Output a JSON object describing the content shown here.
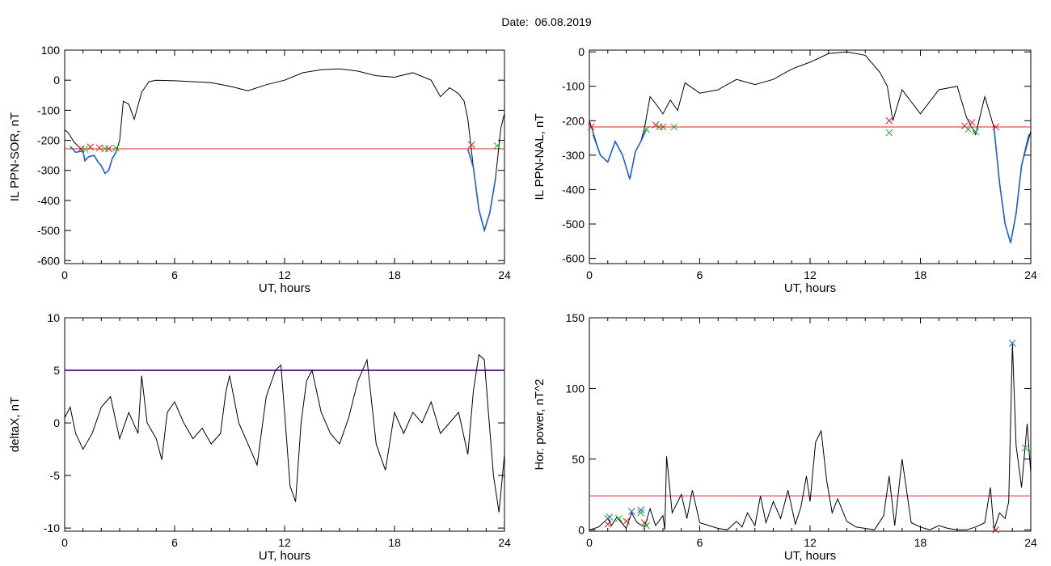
{
  "title": "Date:  06.08.2019",
  "chart_data": [
    {
      "type": "line",
      "title": "",
      "xlabel": "UT, hours",
      "ylabel": "IL PPN-SOR, nT",
      "xlim": [
        0,
        24
      ],
      "ylim": [
        -610,
        100
      ],
      "xticks": [
        "0",
        "6",
        "12",
        "18",
        "24"
      ],
      "yticks": [
        "100",
        "0",
        "-100",
        "-200",
        "-300",
        "-400",
        "-500",
        "-600"
      ],
      "threshold": -228,
      "series": [
        {
          "color": "#000000",
          "x": [
            0,
            0.2,
            0.5,
            1.0,
            1.1,
            1.3,
            1.6,
            1.8,
            2.0,
            2.2,
            2.4,
            2.6,
            2.8,
            3.0,
            3.2,
            3.5,
            3.8,
            4.2,
            4.6,
            5.0,
            6,
            7,
            8,
            9,
            10,
            11,
            12,
            13,
            14,
            15,
            16,
            17,
            18,
            19,
            20,
            20.5,
            21,
            21.5,
            21.8,
            22.0,
            22.3,
            22.6,
            22.9,
            23.2,
            23.5,
            23.8,
            24
          ],
          "y": [
            -165,
            -175,
            -205,
            -235,
            -268,
            -255,
            -250,
            -270,
            -285,
            -310,
            -300,
            -260,
            -240,
            -200,
            -70,
            -80,
            -130,
            -40,
            -5,
            0,
            -2,
            -5,
            -8,
            -20,
            -35,
            -15,
            0,
            25,
            35,
            38,
            30,
            15,
            10,
            25,
            0,
            -55,
            -25,
            -45,
            -70,
            -130,
            -290,
            -430,
            -500,
            -440,
            -330,
            -160,
            -110
          ]
        },
        {
          "color": "#1a5fd8",
          "x": [
            0.3,
            0.6,
            1.0,
            1.1,
            1.3,
            1.6,
            1.8,
            2.0,
            2.2,
            2.4,
            2.6,
            2.8
          ],
          "y": [
            -220,
            -240,
            -235,
            -268,
            -255,
            -250,
            -270,
            -285,
            -310,
            -300,
            -260,
            -240
          ]
        },
        {
          "color": "#1a5fd8",
          "x": [
            22.0,
            22.3,
            22.6,
            22.9,
            23.2,
            23.5
          ],
          "y": [
            -230,
            -290,
            -430,
            -500,
            -440,
            -330
          ]
        }
      ],
      "markers_red": [
        [
          0.9,
          -228
        ],
        [
          1.4,
          -222
        ],
        [
          1.9,
          -225
        ],
        [
          2.4,
          -228
        ],
        [
          22.2,
          -215
        ]
      ],
      "markers_green": [
        [
          1.1,
          -230
        ],
        [
          2.2,
          -228
        ],
        [
          2.8,
          -226
        ],
        [
          23.6,
          -218
        ]
      ]
    },
    {
      "type": "line",
      "title": "",
      "xlabel": "UT, hours",
      "ylabel": "IL PPN-NAL, nT",
      "xlim": [
        0,
        24
      ],
      "ylim": [
        -615,
        5
      ],
      "xticks": [
        "0",
        "6",
        "12",
        "18",
        "24"
      ],
      "yticks": [
        "0",
        "-100",
        "-200",
        "-300",
        "-400",
        "-500",
        "-600"
      ],
      "threshold": -218,
      "series": [
        {
          "color": "#000000",
          "x": [
            0,
            0.3,
            0.6,
            1.0,
            1.4,
            1.8,
            2.2,
            2.5,
            2.8,
            3.0,
            3.3,
            3.6,
            4.0,
            4.4,
            4.8,
            5.2,
            6,
            7,
            8,
            9,
            10,
            11,
            12,
            13,
            14,
            15,
            15.8,
            16.2,
            16.5,
            17,
            18,
            19,
            20,
            20.5,
            21,
            21.5,
            22.0,
            22.3,
            22.6,
            22.9,
            23.2,
            23.5,
            24
          ],
          "y": [
            -200,
            -250,
            -300,
            -320,
            -260,
            -300,
            -370,
            -290,
            -260,
            -220,
            -130,
            -150,
            -180,
            -140,
            -170,
            -90,
            -120,
            -110,
            -80,
            -95,
            -80,
            -50,
            -30,
            -5,
            0,
            -10,
            -60,
            -100,
            -200,
            -110,
            -180,
            -110,
            -100,
            -190,
            -240,
            -130,
            -220,
            -380,
            -500,
            -555,
            -470,
            -330,
            -230
          ]
        },
        {
          "color": "#1a5fd8",
          "x": [
            0.2,
            0.6,
            1.0,
            1.4,
            1.8,
            2.2,
            2.5,
            2.8,
            3.1
          ],
          "y": [
            -240,
            -300,
            -320,
            -260,
            -300,
            -370,
            -290,
            -260,
            -225
          ]
        },
        {
          "color": "#1a5fd8",
          "x": [
            22.0,
            22.3,
            22.6,
            22.9,
            23.2,
            23.5,
            23.9
          ],
          "y": [
            -220,
            -380,
            -500,
            -555,
            -470,
            -330,
            -240
          ]
        }
      ],
      "markers_red": [
        [
          0.1,
          -218
        ],
        [
          3.6,
          -212
        ],
        [
          4.0,
          -218
        ],
        [
          16.3,
          -200
        ],
        [
          20.4,
          -215
        ],
        [
          20.8,
          -205
        ],
        [
          22.1,
          -218
        ]
      ],
      "markers_green": [
        [
          3.1,
          -225
        ],
        [
          3.8,
          -218
        ],
        [
          4.6,
          -218
        ],
        [
          16.3,
          -235
        ],
        [
          20.6,
          -225
        ],
        [
          21.0,
          -232
        ]
      ]
    },
    {
      "type": "line",
      "title": "",
      "xlabel": "UT, hours",
      "ylabel": "deltaX, nT",
      "xlim": [
        0,
        24
      ],
      "ylim": [
        -10.3,
        10
      ],
      "xticks": [
        "0",
        "6",
        "12",
        "18",
        "24"
      ],
      "yticks": [
        "10",
        "5",
        "0",
        "-5",
        "-10"
      ],
      "threshold": 5,
      "series": [
        {
          "color": "#000000",
          "x": [
            0,
            0.3,
            0.6,
            1.0,
            1.5,
            2.0,
            2.5,
            3.0,
            3.5,
            4.0,
            4.2,
            4.5,
            5.0,
            5.3,
            5.6,
            6.0,
            6.5,
            7.0,
            7.5,
            8.0,
            8.5,
            8.8,
            9.0,
            9.5,
            10.0,
            10.5,
            11.0,
            11.5,
            11.8,
            12.0,
            12.3,
            12.6,
            12.9,
            13.2,
            13.5,
            14.0,
            14.5,
            15.0,
            15.5,
            16.0,
            16.5,
            17.0,
            17.5,
            18.0,
            18.5,
            19.0,
            19.5,
            20.0,
            20.5,
            21.0,
            21.5,
            22.0,
            22.3,
            22.6,
            22.9,
            23.1,
            23.4,
            23.7,
            24
          ],
          "y": [
            0.5,
            1.5,
            -1,
            -2.5,
            -1,
            1.5,
            2.5,
            -1.5,
            1,
            -1,
            4.5,
            0,
            -1.5,
            -3.5,
            1,
            2,
            0,
            -1.5,
            -0.5,
            -2,
            -1,
            3,
            4.5,
            0,
            -2,
            -4,
            2.5,
            5,
            5.5,
            1,
            -6,
            -7.5,
            0,
            4,
            5,
            1,
            -1,
            -2,
            0.5,
            4,
            6,
            -2,
            -4.5,
            1,
            -1,
            1,
            0,
            2,
            -1,
            0,
            1,
            -3,
            3,
            6.5,
            6,
            1.5,
            -5,
            -8.5,
            -3
          ]
        }
      ]
    },
    {
      "type": "line",
      "title": "",
      "xlabel": "UT, hours",
      "ylabel": "Hor. power, nT^2",
      "xlim": [
        0,
        24
      ],
      "ylim": [
        -1,
        150
      ],
      "xticks": [
        "0",
        "6",
        "12",
        "18",
        "24"
      ],
      "yticks": [
        "150",
        "100",
        "50",
        "0"
      ],
      "threshold": 24,
      "series": [
        {
          "color": "#000000",
          "x": [
            0,
            0.5,
            1.0,
            1.2,
            1.5,
            2.0,
            2.3,
            2.6,
            3.0,
            3.3,
            3.6,
            4.0,
            4.1,
            4.2,
            4.5,
            5.0,
            5.3,
            5.6,
            6.0,
            6.5,
            7.0,
            7.5,
            8.0,
            8.3,
            8.6,
            9.0,
            9.3,
            9.6,
            10.0,
            10.4,
            10.8,
            11.2,
            11.5,
            11.8,
            12.0,
            12.3,
            12.6,
            12.9,
            13.2,
            13.5,
            14.0,
            14.5,
            15.0,
            15.5,
            16.0,
            16.3,
            16.6,
            17.0,
            17.5,
            18.0,
            18.5,
            19.0,
            19.5,
            20.0,
            20.5,
            21.0,
            21.5,
            21.8,
            22.0,
            22.3,
            22.6,
            22.8,
            23.0,
            23.2,
            23.5,
            23.8,
            24
          ],
          "y": [
            0,
            2,
            8,
            3,
            9,
            1,
            12,
            5,
            2,
            15,
            3,
            10,
            0,
            52,
            12,
            25,
            8,
            28,
            5,
            3,
            1,
            0,
            6,
            2,
            12,
            3,
            24,
            5,
            20,
            8,
            28,
            4,
            16,
            38,
            20,
            62,
            70,
            35,
            12,
            22,
            6,
            2,
            1,
            0,
            10,
            38,
            3,
            50,
            5,
            2,
            0,
            3,
            1,
            0,
            0,
            2,
            5,
            30,
            0,
            12,
            8,
            20,
            132,
            60,
            30,
            75,
            40
          ]
        }
      ],
      "markers_red": [
        [
          1.0,
          4
        ],
        [
          2.0,
          6
        ],
        [
          3.0,
          5
        ],
        [
          22.1,
          0
        ]
      ],
      "markers_green": [
        [
          1.1,
          9
        ],
        [
          1.6,
          8
        ],
        [
          2.8,
          12
        ],
        [
          3.1,
          3
        ],
        [
          23.7,
          58
        ]
      ],
      "markers_blue": [
        [
          1.0,
          8
        ],
        [
          2.3,
          13
        ],
        [
          2.8,
          14
        ],
        [
          23.0,
          132
        ]
      ]
    }
  ]
}
